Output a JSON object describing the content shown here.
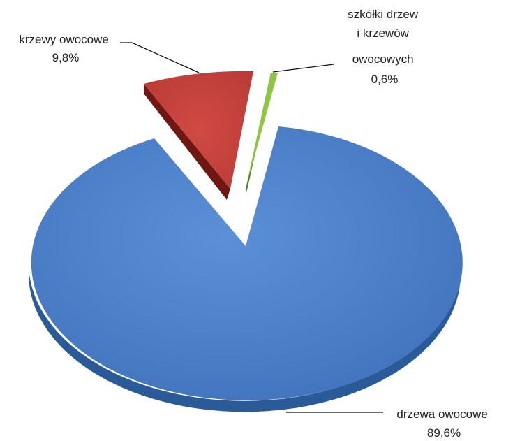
{
  "chart_data": {
    "type": "pie",
    "style": "3d-exploded",
    "slices": [
      {
        "key": "drzewa",
        "label_lines": [
          "drzewa owocowe",
          "89,6%"
        ],
        "value": 89.6,
        "color": "#4a7fc9"
      },
      {
        "key": "krzewy",
        "label_lines": [
          "krzewy owocowe",
          "9,8%"
        ],
        "value": 9.8,
        "color": "#c3403c"
      },
      {
        "key": "szkolki",
        "label_lines": [
          "szkółki drzew",
          "i krzewów",
          "owocowych",
          "0,6%"
        ],
        "value": 0.6,
        "color": "#8dc63f"
      }
    ]
  }
}
